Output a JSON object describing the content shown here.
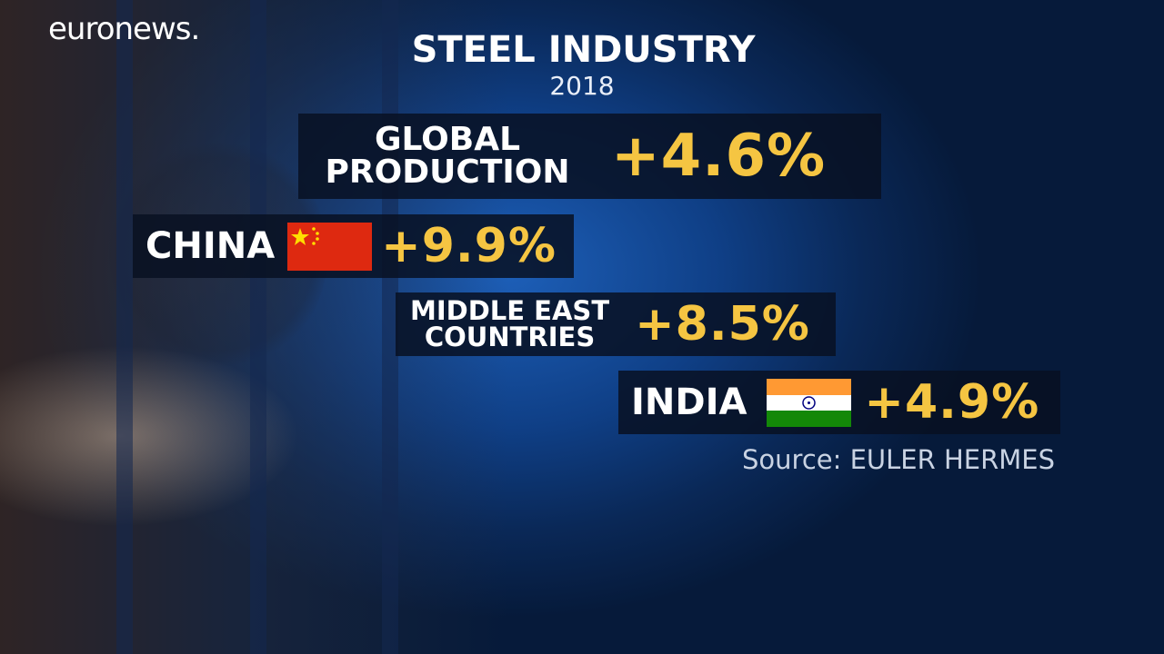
{
  "logo": "euronews.",
  "title": "STEEL INDUSTRY",
  "subtitle": "2018",
  "items": [
    {
      "label_lines": [
        "GLOBAL",
        "PRODUCTION"
      ],
      "value": "+4.6%"
    },
    {
      "label": "CHINA",
      "value": "+9.9%"
    },
    {
      "label_lines": [
        "MIDDLE EAST",
        "COUNTRIES"
      ],
      "value": "+8.5%"
    },
    {
      "label": "INDIA",
      "value": "+4.9%"
    }
  ],
  "source": "Source: EULER HERMES"
}
